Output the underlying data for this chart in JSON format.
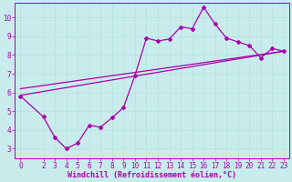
{
  "xlabel": "Windchill (Refroidissement éolien,°C)",
  "bg_color": "#c8ecec",
  "line_color": "#aa00aa",
  "grid_color": "#b8e0e0",
  "x_ticks": [
    0,
    2,
    3,
    4,
    5,
    6,
    7,
    8,
    9,
    10,
    11,
    12,
    13,
    14,
    15,
    16,
    17,
    18,
    19,
    20,
    21,
    22,
    23
  ],
  "y_ticks": [
    3,
    4,
    5,
    6,
    7,
    8,
    9,
    10
  ],
  "xlim": [
    -0.5,
    23.5
  ],
  "ylim": [
    2.5,
    10.8
  ],
  "line1_x": [
    0,
    2,
    3,
    4,
    5,
    6,
    7,
    8,
    9,
    10,
    11,
    12,
    13,
    14,
    15,
    16,
    17,
    18,
    19,
    20,
    21,
    22,
    23
  ],
  "line1_y": [
    5.8,
    4.7,
    3.6,
    3.0,
    3.3,
    4.25,
    4.15,
    4.65,
    5.2,
    6.9,
    8.9,
    8.75,
    8.85,
    9.5,
    9.4,
    10.55,
    9.65,
    8.9,
    8.7,
    8.5,
    7.85,
    8.35,
    8.2
  ],
  "line2_x": [
    0,
    23
  ],
  "line2_y": [
    5.85,
    8.2
  ],
  "line3_x": [
    0,
    23
  ],
  "line3_y": [
    6.2,
    8.2
  ],
  "marker": "D",
  "markersize": 2.0,
  "linewidth": 0.9,
  "tick_labelsize": 5.5,
  "xlabel_fontsize": 6.0,
  "xlabel_color": "#aa00aa",
  "tick_color": "#aa00aa",
  "spine_color": "#aa00aa"
}
